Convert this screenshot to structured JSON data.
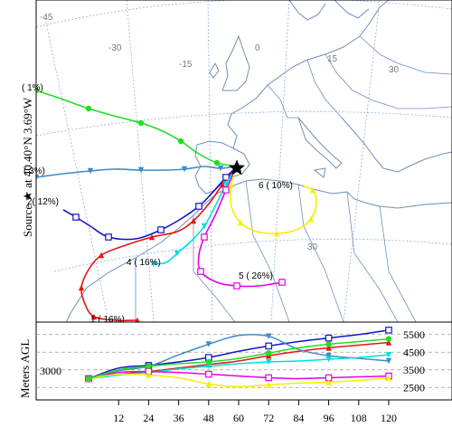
{
  "source_label": "Source ★ at 40.40°N 3.69°W",
  "map": {
    "lon_labels": [
      "-45",
      "-30",
      "-15",
      "0",
      "15",
      "30"
    ],
    "lat_labels": [
      "30"
    ],
    "end_marker": "star-icon"
  },
  "clusters": [
    {
      "id": "1",
      "label": "1 ( 16%)",
      "color": "#e8140f",
      "marker": "triangle-up-icon"
    },
    {
      "id": "2",
      "label": "2( 12%)",
      "color": "#1414c8",
      "marker": "square-open-icon"
    },
    {
      "id": "3",
      "label": "( 3%)",
      "color": "#3c8cc8",
      "marker": "triangle-down-icon"
    },
    {
      "id": "4",
      "label": "4 ( 16%)",
      "color": "#00e0e0",
      "marker": "triangle-down-icon"
    },
    {
      "id": "5",
      "label": "5 ( 26%)",
      "color": "#e600e6",
      "marker": "square-open-icon"
    },
    {
      "id": "6",
      "label": "6 ( 10%)",
      "color": "#f0f000",
      "marker": "triangle-up-icon"
    },
    {
      "id": "7",
      "label": "( 1%)",
      "color": "#22dd22",
      "marker": "circle-icon"
    }
  ],
  "height_panel": {
    "ylabel": "Meters AGL",
    "start_label": "3000",
    "right_ticks": [
      "5500",
      "4500",
      "3500",
      "2500"
    ],
    "x_ticks": [
      "12",
      "24",
      "36",
      "48",
      "60",
      "72",
      "84",
      "96",
      "108",
      "120"
    ]
  },
  "chart_data": {
    "type": "line",
    "x": [
      0,
      12,
      24,
      36,
      48,
      60,
      72,
      84,
      96,
      108,
      120
    ],
    "ylim": [
      2000,
      6000
    ],
    "series": [
      {
        "name": "1",
        "values": [
          3000,
          3250,
          3400,
          3600,
          3800,
          4000,
          4300,
          4550,
          4750,
          4900,
          5050
        ]
      },
      {
        "name": "2",
        "values": [
          3000,
          3600,
          3750,
          3950,
          4200,
          4550,
          4850,
          5100,
          5300,
          5500,
          5750
        ]
      },
      {
        "name": "3",
        "values": [
          3000,
          3450,
          3700,
          4350,
          4950,
          5450,
          5400,
          4650,
          4300,
          4150,
          4000
        ]
      },
      {
        "name": "4",
        "values": [
          3000,
          3200,
          3350,
          3550,
          3700,
          3850,
          3950,
          4000,
          4100,
          4200,
          4350
        ]
      },
      {
        "name": "5",
        "values": [
          3000,
          3350,
          3400,
          3350,
          3250,
          3150,
          3050,
          3000,
          3050,
          3100,
          3150
        ]
      },
      {
        "name": "6",
        "values": [
          3000,
          3250,
          3200,
          3050,
          2700,
          2550,
          2650,
          2750,
          2800,
          2900,
          3050
        ]
      },
      {
        "name": "7",
        "values": [
          3000,
          3500,
          3700,
          3850,
          3950,
          4150,
          4450,
          4750,
          4950,
          5100,
          5250
        ]
      }
    ]
  }
}
